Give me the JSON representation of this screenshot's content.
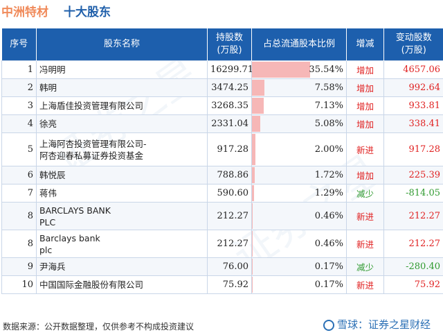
{
  "header": {
    "company": "中洲特材",
    "subtitle": "十大股东"
  },
  "columns": [
    "序号",
    "股东名称",
    "持股数\n(万股)",
    "占总流通股本比例",
    "增减",
    "变动股数\n(万股)"
  ],
  "rows": [
    {
      "seq": "1",
      "name": "冯明明",
      "shares": "16299.71",
      "ratio": "35.54%",
      "ratio_value": 35.54,
      "change": "增加",
      "delta": "4657.06",
      "dir": "up"
    },
    {
      "seq": "2",
      "name": "韩明",
      "shares": "3474.25",
      "ratio": "7.58%",
      "ratio_value": 7.58,
      "change": "增加",
      "delta": "992.64",
      "dir": "up"
    },
    {
      "seq": "3",
      "name": "上海盾佳投资管理有限公司",
      "shares": "3268.35",
      "ratio": "7.13%",
      "ratio_value": 7.13,
      "change": "增加",
      "delta": "933.81",
      "dir": "up"
    },
    {
      "seq": "4",
      "name": "徐亮",
      "shares": "2331.04",
      "ratio": "5.08%",
      "ratio_value": 5.08,
      "change": "增加",
      "delta": "338.41",
      "dir": "up"
    },
    {
      "seq": "5",
      "name": "上海阿杏投资管理有限公司-\n阿杏迎春私募证券投资基金",
      "shares": "917.28",
      "ratio": "2.00%",
      "ratio_value": 2.0,
      "change": "新进",
      "delta": "917.28",
      "dir": "up"
    },
    {
      "seq": "6",
      "name": "韩悦辰",
      "shares": "788.86",
      "ratio": "1.72%",
      "ratio_value": 1.72,
      "change": "增加",
      "delta": "225.39",
      "dir": "up"
    },
    {
      "seq": "7",
      "name": "蒋伟",
      "shares": "590.60",
      "ratio": "1.29%",
      "ratio_value": 1.29,
      "change": "减少",
      "delta": "-814.05",
      "dir": "down"
    },
    {
      "seq": "8",
      "name": "BARCLAYS BANK\nPLC",
      "shares": "212.27",
      "ratio": "0.46%",
      "ratio_value": 0.46,
      "change": "新进",
      "delta": "212.27",
      "dir": "up"
    },
    {
      "seq": "8",
      "name": "Barclays bank\nplc",
      "shares": "212.27",
      "ratio": "0.46%",
      "ratio_value": 0.46,
      "change": "新进",
      "delta": "212.27",
      "dir": "up"
    },
    {
      "seq": "9",
      "name": "尹海兵",
      "shares": "76.00",
      "ratio": "0.17%",
      "ratio_value": 0.17,
      "change": "减少",
      "delta": "-280.40",
      "dir": "down"
    },
    {
      "seq": "10",
      "name": "中国国际金融股份有限公司",
      "shares": "75.92",
      "ratio": "0.17%",
      "ratio_value": 0.17,
      "change": "新进",
      "delta": "75.92",
      "dir": "up"
    }
  ],
  "footer": {
    "source": "数据来源：公开数据整理，仅供参考不构成投资建议",
    "brand": "雪球：证券之星财经"
  },
  "colors": {
    "header_bg": "#1d5fad",
    "increase": "#e02020",
    "decrease": "#2f9a2f",
    "bar": "#f6b7b7"
  }
}
